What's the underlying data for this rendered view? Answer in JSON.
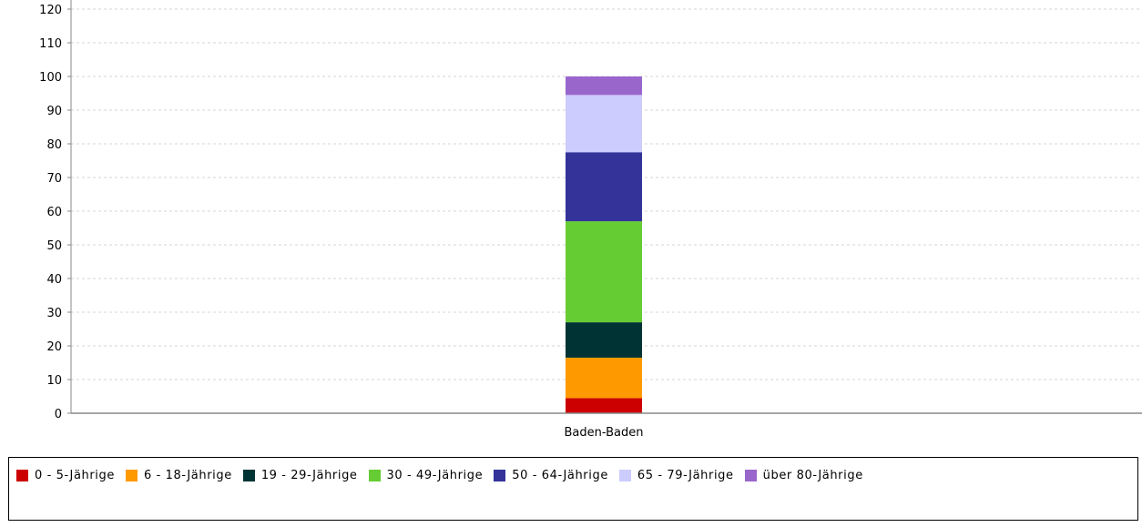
{
  "chart_data": {
    "type": "bar",
    "stacked": true,
    "categories": [
      "Baden-Baden"
    ],
    "ylim": [
      0,
      120
    ],
    "yticks": [
      0,
      10,
      20,
      30,
      40,
      50,
      60,
      70,
      80,
      90,
      100,
      110,
      120
    ],
    "grid": true,
    "legend_position": "bottom",
    "series": [
      {
        "name": "0 - 5-Jährige",
        "values": [
          4.5
        ],
        "color": "#cc0000"
      },
      {
        "name": "6 - 18-Jährige",
        "values": [
          12
        ],
        "color": "#ff9900"
      },
      {
        "name": "19 - 29-Jährige",
        "values": [
          10.5
        ],
        "color": "#003333"
      },
      {
        "name": "30 - 49-Jährige",
        "values": [
          30
        ],
        "color": "#66cc33"
      },
      {
        "name": "50 - 64-Jährige",
        "values": [
          20.5
        ],
        "color": "#333399"
      },
      {
        "name": "65 - 79-Jährige",
        "values": [
          17
        ],
        "color": "#ccccff"
      },
      {
        "name": "über 80-Jährige",
        "values": [
          5.5
        ],
        "color": "#9966cc"
      }
    ]
  }
}
